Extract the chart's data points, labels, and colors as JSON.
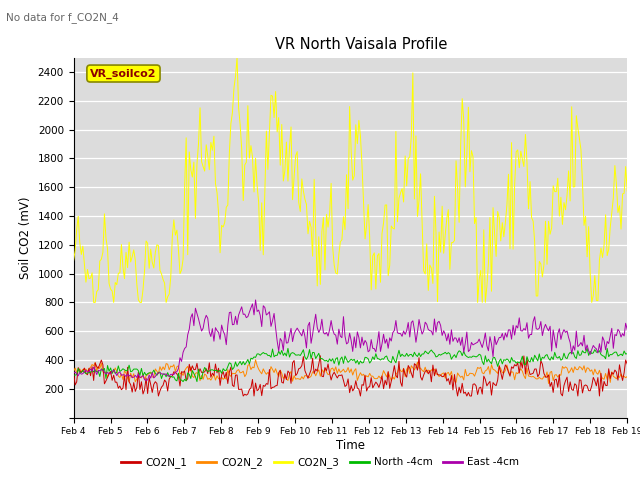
{
  "title": "VR North Vaisala Profile",
  "no_data_text": "No data for f_CO2N_4",
  "inner_label": "VR_soilco2",
  "xlabel": "Time",
  "ylabel": "Soil CO2 (mV)",
  "ylim": [
    0,
    2500
  ],
  "yticks": [
    0,
    200,
    400,
    600,
    800,
    1000,
    1200,
    1400,
    1600,
    1800,
    2000,
    2200,
    2400
  ],
  "xtick_labels": [
    "Feb 4",
    "Feb 5",
    "Feb 6",
    "Feb 7",
    "Feb 8",
    "Feb 9",
    "Feb 10",
    "Feb 11",
    "Feb 12",
    "Feb 13",
    "Feb 14",
    "Feb 15",
    "Feb 16",
    "Feb 17",
    "Feb 18",
    "Feb 19"
  ],
  "bg_color": "#dcdcdc",
  "line_colors": {
    "CO2N_1": "#cc0000",
    "CO2N_2": "#ff8800",
    "CO2N_3": "#ffff00",
    "North": "#00bb00",
    "East": "#aa00aa"
  },
  "legend_entries": [
    "CO2N_1",
    "CO2N_2",
    "CO2N_3",
    "North -4cm",
    "East -4cm"
  ]
}
